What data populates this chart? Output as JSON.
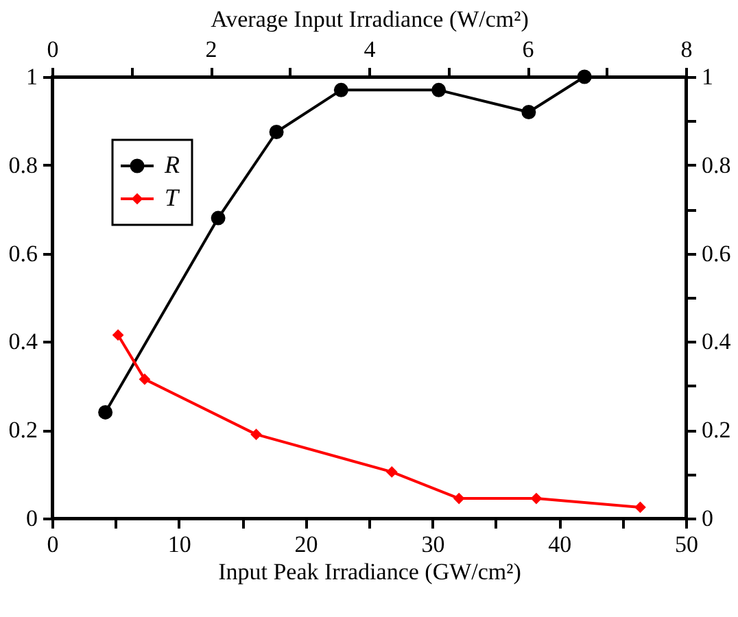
{
  "chart_data": {
    "type": "line",
    "xlabel": "Input Peak Irradiance (GW/cm²)",
    "x2label": "Average Input Irradiance (W/cm²)",
    "xlim": [
      0,
      50
    ],
    "xticks": [
      0,
      {
        "value": 5,
        "label": null
      },
      10,
      {
        "value": 15,
        "label": null
      },
      20,
      {
        "value": 25,
        "label": null
      },
      30,
      {
        "value": 35,
        "label": null
      },
      40,
      {
        "value": 45,
        "label": null
      },
      50
    ],
    "x2lim": [
      0,
      8
    ],
    "x2ticks": [
      0,
      {
        "value": 1,
        "label": null
      },
      2,
      {
        "value": 3,
        "label": null
      },
      4,
      {
        "value": 5,
        "label": null
      },
      6,
      {
        "value": 7,
        "label": null
      },
      8
    ],
    "ylim": [
      0,
      1
    ],
    "yticks": [
      0,
      {
        "value": 0.1,
        "label": null
      },
      0.2,
      {
        "value": 0.3,
        "label": null
      },
      0.4,
      {
        "value": 0.5,
        "label": null
      },
      0.6,
      {
        "value": 0.7,
        "label": null
      },
      0.8,
      {
        "value": 0.9,
        "label": null
      },
      1
    ],
    "y2lim": [
      0,
      1
    ],
    "y2ticks": [
      0,
      {
        "value": 0.1,
        "label": null
      },
      0.2,
      {
        "value": 0.3,
        "label": null
      },
      0.4,
      {
        "value": 0.5,
        "label": null
      },
      0.6,
      {
        "value": 0.7,
        "label": null
      },
      0.8,
      {
        "value": 0.9,
        "label": null
      },
      1
    ],
    "legend": "top left",
    "grid": false,
    "series": [
      {
        "name": "R",
        "color": "#000000",
        "marker": "circle",
        "x": [
          4.2,
          13.1,
          17.7,
          22.8,
          30.5,
          37.6,
          42.0
        ],
        "values": [
          0.24,
          0.68,
          0.875,
          0.97,
          0.97,
          0.92,
          1.0
        ]
      },
      {
        "name": "T",
        "color": "#ff0000",
        "marker": "diamond",
        "x": [
          5.2,
          7.3,
          16.1,
          26.8,
          32.1,
          38.2,
          46.4
        ],
        "values": [
          0.415,
          0.315,
          0.19,
          0.105,
          0.045,
          0.045,
          0.025
        ]
      }
    ]
  }
}
